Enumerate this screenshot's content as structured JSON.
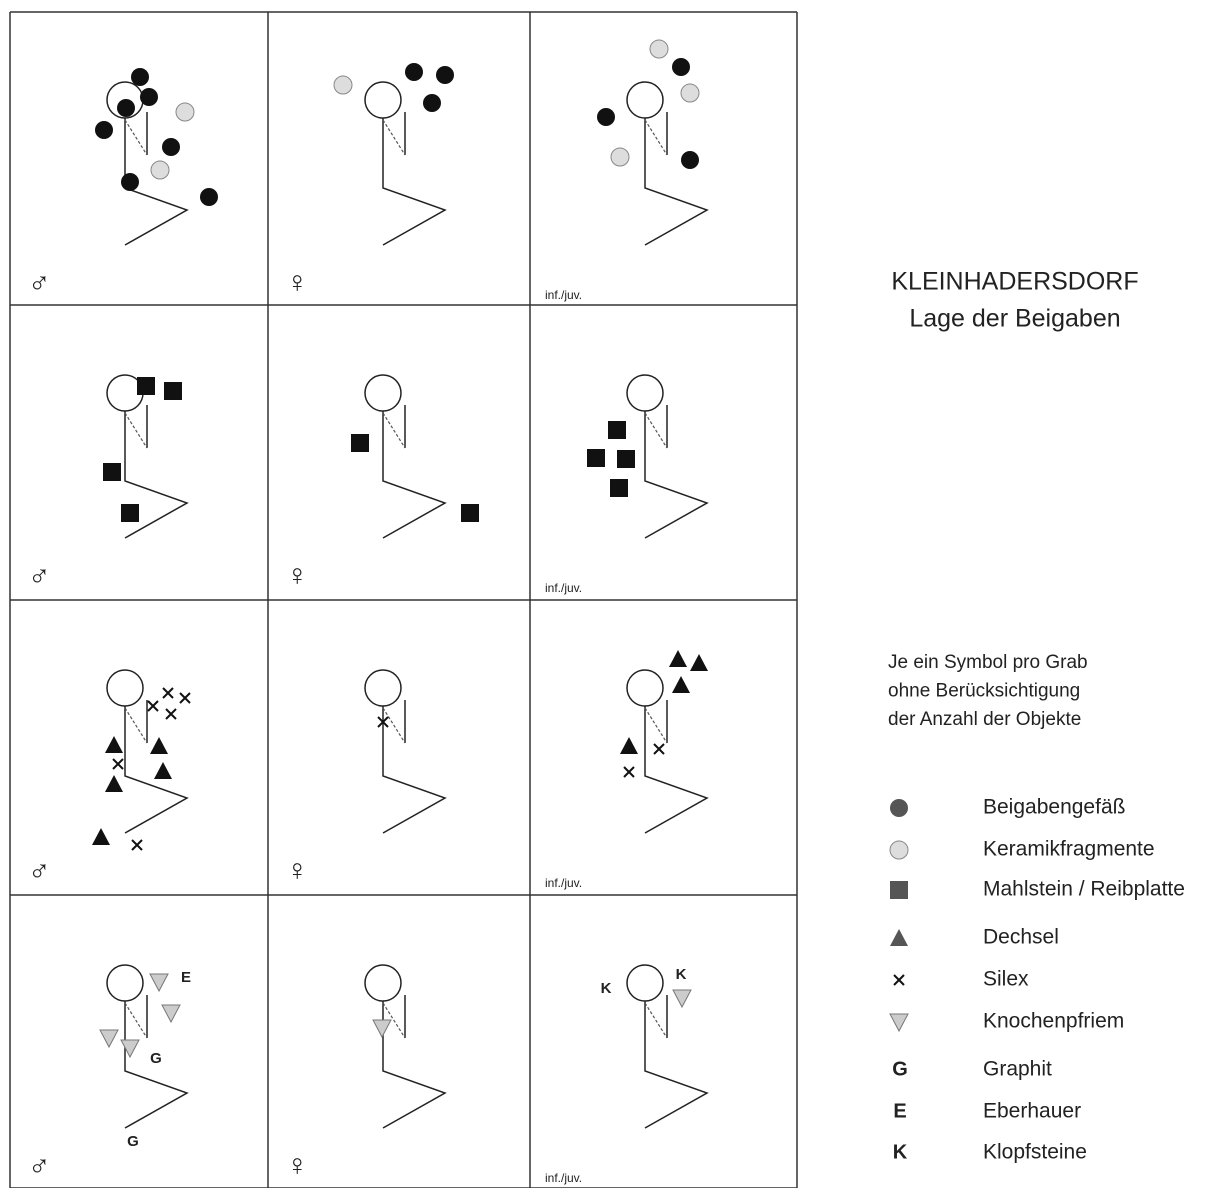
{
  "title": "KLEINHADERSDORF",
  "subtitle": "Lage der Beigaben",
  "note": [
    "Je ein Symbol pro Grab",
    "ohne Berücksichtigung",
    "der Anzahl der Objekte"
  ],
  "legend": [
    {
      "label": "Beigabengefäß"
    },
    {
      "label": "Keramikfragmente"
    },
    {
      "label": "Mahlstein / Reibplatte"
    },
    {
      "label": "Dechsel"
    },
    {
      "label": "Silex"
    },
    {
      "label": "Knochenpfriem"
    },
    {
      "symbol": "G",
      "label": "Graphit"
    },
    {
      "symbol": "E",
      "label": "Eberhauer"
    },
    {
      "symbol": "K",
      "label": "Klopfsteine"
    }
  ],
  "grid": {
    "rows": [
      [
        {
          "sex": "♂"
        },
        {
          "sex": "♀"
        },
        {
          "sex": "inf./juv."
        }
      ],
      [
        {
          "sex": "♂"
        },
        {
          "sex": "♀"
        },
        {
          "sex": "inf./juv."
        }
      ],
      [
        {
          "sex": "♂"
        },
        {
          "sex": "♀"
        },
        {
          "sex": "inf./juv."
        }
      ],
      [
        {
          "sex": "♂",
          "letters": [
            "E",
            "G",
            "G"
          ]
        },
        {
          "sex": "♀"
        },
        {
          "sex": "inf./juv.",
          "letters": [
            "K",
            "K"
          ]
        }
      ]
    ]
  }
}
